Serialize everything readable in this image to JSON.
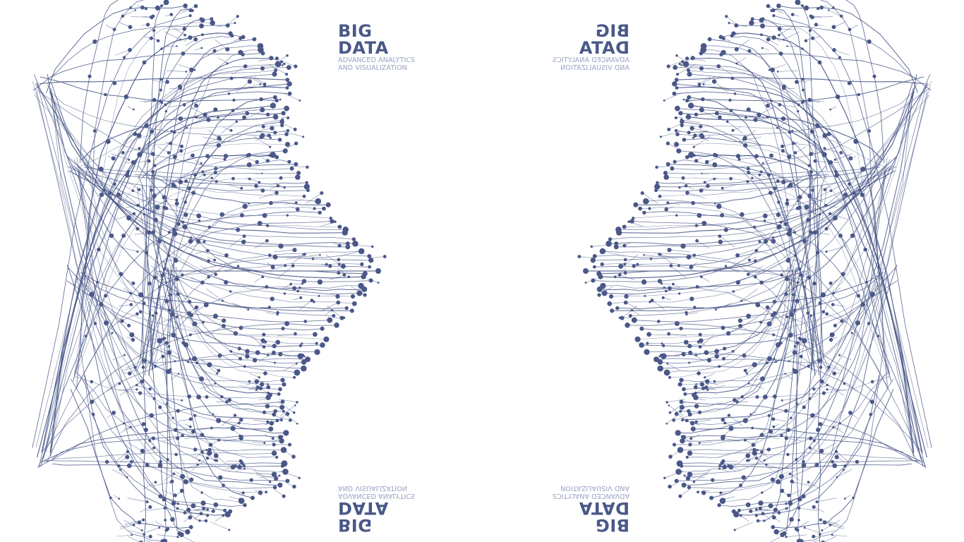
{
  "artwork": {
    "line_color": "#4a5888",
    "dot_color": "#4a5888",
    "background": "#ffffff",
    "motif": "symmetric-branching-network"
  },
  "logos": [
    {
      "title": "BIG DATA",
      "line1": "ADVANCED ANALYTICS",
      "line2": "AND VISUALIZATION"
    },
    {
      "title": "BIG DATA",
      "line1": "ADVANCED ANALYTICS",
      "line2": "AND VISUALIZATION"
    },
    {
      "title": "BIG DATA",
      "line1": "ADVANCED ANALYTICS",
      "line2": "AND VISUALIZATION"
    },
    {
      "title": "BIG DATA",
      "line1": "ADVANCED ANALYTICS",
      "line2": "AND VISUALIZATION"
    }
  ]
}
